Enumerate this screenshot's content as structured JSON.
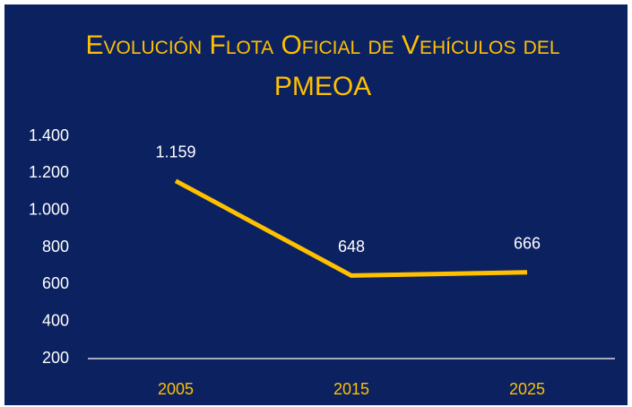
{
  "chart_data": {
    "type": "line",
    "title": "Evolución Flota Oficial de Vehículos del PMEOA",
    "categories": [
      "2005",
      "2015",
      "2025"
    ],
    "values": [
      1159,
      648,
      666
    ],
    "value_labels": [
      "1.159",
      "648",
      "666"
    ],
    "color": "#FFC000",
    "ylim": [
      200,
      1400
    ],
    "yticks": [
      200,
      400,
      600,
      800,
      {
        "value": 1000,
        "label": "1.000"
      },
      {
        "value": 1200,
        "label": "1.200"
      },
      {
        "value": 1400,
        "label": "1.400"
      }
    ],
    "grid": false
  }
}
